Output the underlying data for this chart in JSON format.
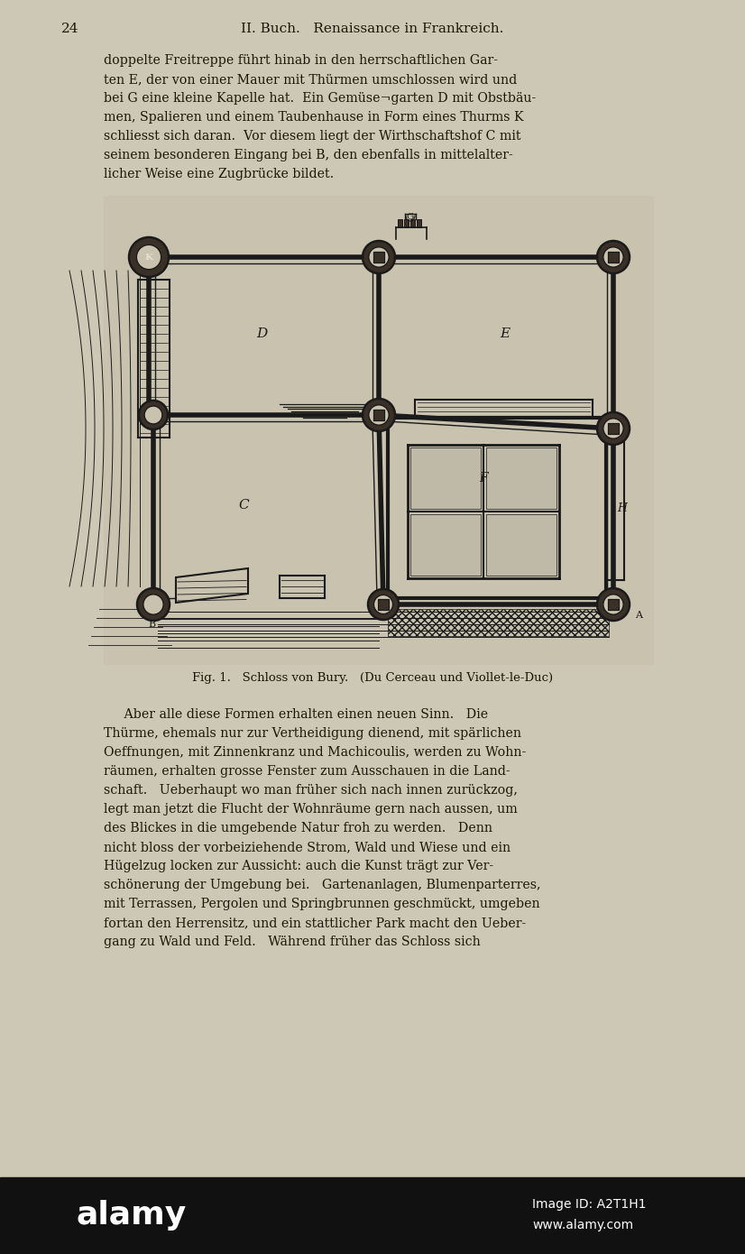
{
  "bg_color": "#cdc8b5",
  "text_color": "#1a1708",
  "page_number": "24",
  "header": "II. Buch.   Renaissance in Frankreich.",
  "top_text_lines": [
    "doppelte Freitreppe führt hinab in den herrschaftlichen Gar-",
    "ten E, der von einer Mauer mit Thürmen umschlossen wird und",
    "bei G eine kleine Kapelle hat.  Ein Gemüse¬garten D mit Obstbäu-",
    "men, Spalieren und einem Taubenhause in Form eines Thurms K",
    "schliesst sich daran.  Vor diesem liegt der Wirthschaftshof C mit",
    "seinem besonderen Eingang bei B, den ebenfalls in mittelalter-",
    "licher Weise eine Zugbrücke bildet."
  ],
  "caption": "Fig. 1.   Schloss von Bury.   (Du Cerceau und Viollet-le-Duc)",
  "bottom_text_lines": [
    "     Aber alle diese Formen erhalten einen neuen Sinn.   Die",
    "Thürme, ehemals nur zur Vertheidigung dienend, mit spärlichen",
    "Oeffnungen, mit Zinnenkranz und Machicoulis, werden zu Wohn-",
    "räumen, erhalten grosse Fenster zum Ausschauen in die Land-",
    "schaft.   Ueberhaupt wo man früher sich nach innen zurückzog,",
    "legt man jetzt die Flucht der Wohnräume gern nach aussen, um",
    "des Blickes in die umgebende Natur froh zu werden.   Denn",
    "nicht bloss der vorbeiziehende Strom, Wald und Wiese und ein",
    "Hügelzug locken zur Aussicht: auch die Kunst trägt zur Ver-",
    "schönerung der Umgebung bei.   Gartenanlagen, Blumenparterres,",
    "mit Terrassen, Pergolen und Springbrunnen geschmückt, umgeben",
    "fortan den Herrensitz, und ein stattlicher Park macht den Ueber-",
    "gang zu Wald und Feld.   Während früher das Schloss sich"
  ],
  "watermark": "alamy",
  "watermark2": "Image ID: A2T1H1",
  "watermark3": "www.alamy.com",
  "dc": "#1a1a1a",
  "lc": "#2a2520",
  "plan_bg": "#c8c2af"
}
